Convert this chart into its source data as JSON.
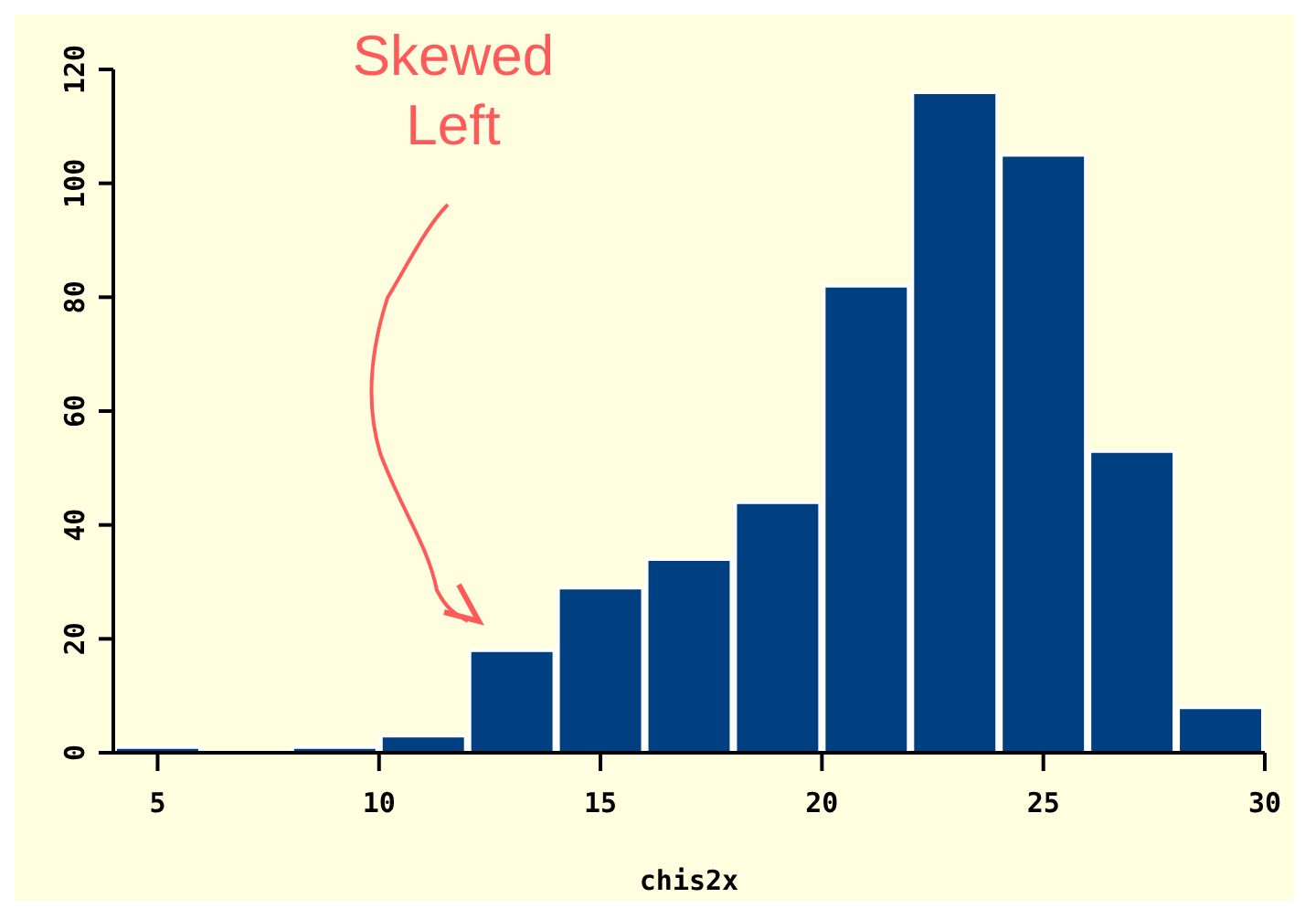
{
  "chart_data": {
    "type": "histogram",
    "xlabel": "chis2x",
    "bins": [
      4,
      6,
      8,
      10,
      12,
      14,
      16,
      18,
      20,
      22,
      24,
      26,
      28,
      30
    ],
    "values": [
      1,
      0,
      1,
      3,
      18,
      29,
      34,
      44,
      82,
      116,
      105,
      53,
      8
    ],
    "color": "#003f80",
    "xlim": [
      4,
      30
    ],
    "xticks": [
      5,
      10,
      15,
      20,
      25,
      30
    ],
    "ylim": [
      0,
      120
    ],
    "yticks": [
      0,
      20,
      40,
      60,
      80,
      100,
      120
    ],
    "grid": false,
    "annotations": [
      "Skewed Left"
    ]
  }
}
